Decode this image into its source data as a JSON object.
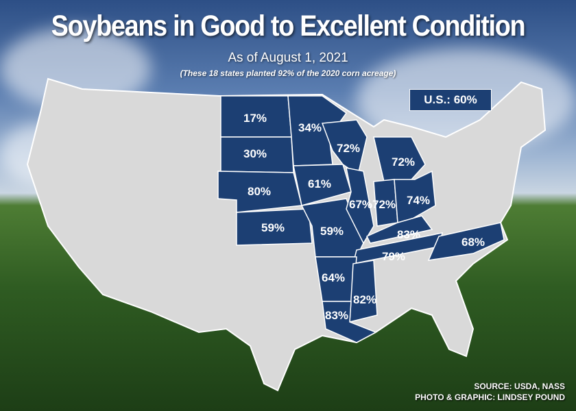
{
  "title": "Soybeans in Good to Excellent Condition",
  "subtitle": "As of August 1, 2021",
  "note": "(These 18 states planted 92% of the 2020 corn acreage)",
  "us_total": "U.S.: 60%",
  "colors": {
    "highlight_state": "#1c3f73",
    "other_state": "#d9d9d9"
  },
  "states": [
    {
      "state": "North Dakota",
      "value": "17%"
    },
    {
      "state": "South Dakota",
      "value": "30%"
    },
    {
      "state": "Nebraska",
      "value": "80%"
    },
    {
      "state": "Kansas",
      "value": "59%"
    },
    {
      "state": "Minnesota",
      "value": "34%"
    },
    {
      "state": "Iowa",
      "value": "61%"
    },
    {
      "state": "Missouri",
      "value": "59%"
    },
    {
      "state": "Wisconsin",
      "value": "72%"
    },
    {
      "state": "Michigan",
      "value": "72%"
    },
    {
      "state": "Illinois",
      "value": "67%"
    },
    {
      "state": "Indiana",
      "value": "72%"
    },
    {
      "state": "Ohio",
      "value": "74%"
    },
    {
      "state": "Kentucky",
      "value": "83%"
    },
    {
      "state": "Tennessee",
      "value": "79%"
    },
    {
      "state": "North Carolina",
      "value": "68%"
    },
    {
      "state": "Arkansas",
      "value": "64%"
    },
    {
      "state": "Mississippi",
      "value": "82%"
    },
    {
      "state": "Louisiana",
      "value": "83%"
    }
  ],
  "source": "SOURCE: USDA, NASS",
  "credit": "PHOTO & GRAPHIC: LINDSEY POUND"
}
